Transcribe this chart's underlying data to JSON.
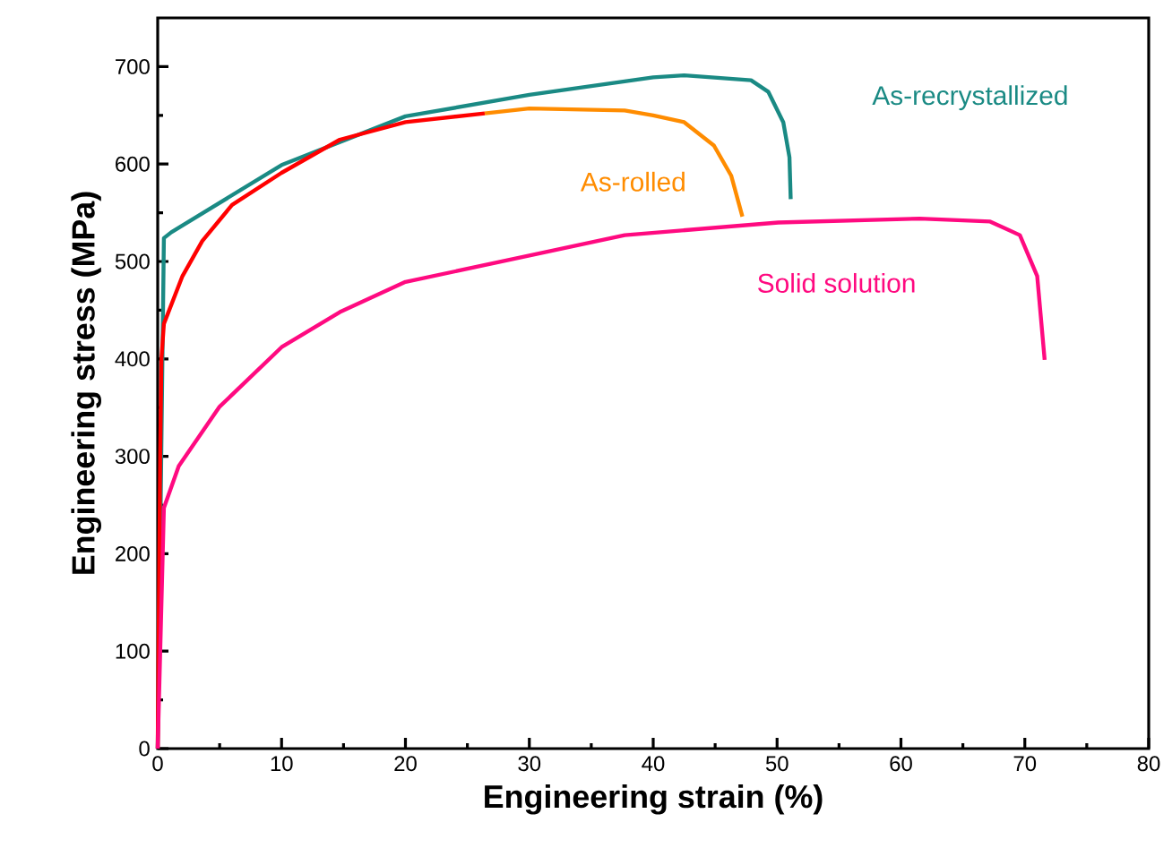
{
  "chart_data": {
    "type": "line",
    "xlabel": "Engineering strain (%)",
    "ylabel": "Engineering stress (MPa)",
    "xlim": [
      0,
      80
    ],
    "ylim": [
      0,
      750
    ],
    "xticks": [
      0,
      10,
      20,
      30,
      40,
      50,
      60,
      70,
      80
    ],
    "yticks": [
      0,
      100,
      200,
      300,
      400,
      500,
      600,
      700
    ],
    "grid": false,
    "legend": false,
    "marker": "none",
    "line_style": "solid",
    "series": [
      {
        "name": "As-recrystallized",
        "color": "#1a8a84",
        "x": [
          0,
          0.5,
          1.1,
          10,
          20,
          30,
          40,
          42.5,
          47.9,
          49.3,
          50.5,
          51,
          51.1
        ],
        "values": [
          0,
          524,
          530,
          599,
          649,
          671,
          689,
          691,
          686,
          674,
          643,
          607,
          564
        ]
      },
      {
        "color": "#ff0000",
        "x": [
          0,
          0.2,
          0.3,
          0.5,
          2,
          3.6,
          6,
          10,
          14.7,
          20,
          26.4
        ],
        "values": [
          0,
          300,
          400,
          436,
          485,
          521,
          558,
          591,
          625,
          643,
          652
        ]
      },
      {
        "name": "As-rolled",
        "color": "#ff8c00",
        "x": [
          26.4,
          30,
          37.7,
          40,
          42.5,
          44.9,
          46.3,
          47.2
        ],
        "values": [
          652,
          657,
          655,
          650,
          643,
          619,
          588,
          546
        ]
      },
      {
        "name": "Solid solution",
        "color": "#ff0a80",
        "x": [
          0,
          0.5,
          1.7,
          5,
          10,
          14.7,
          20,
          30,
          37.7,
          50.1,
          61.5,
          67.2,
          69.6,
          71,
          71.6
        ],
        "values": [
          0,
          247,
          290,
          351,
          412,
          448,
          479,
          506,
          527,
          540,
          544,
          541,
          527,
          485,
          399
        ]
      }
    ]
  }
}
